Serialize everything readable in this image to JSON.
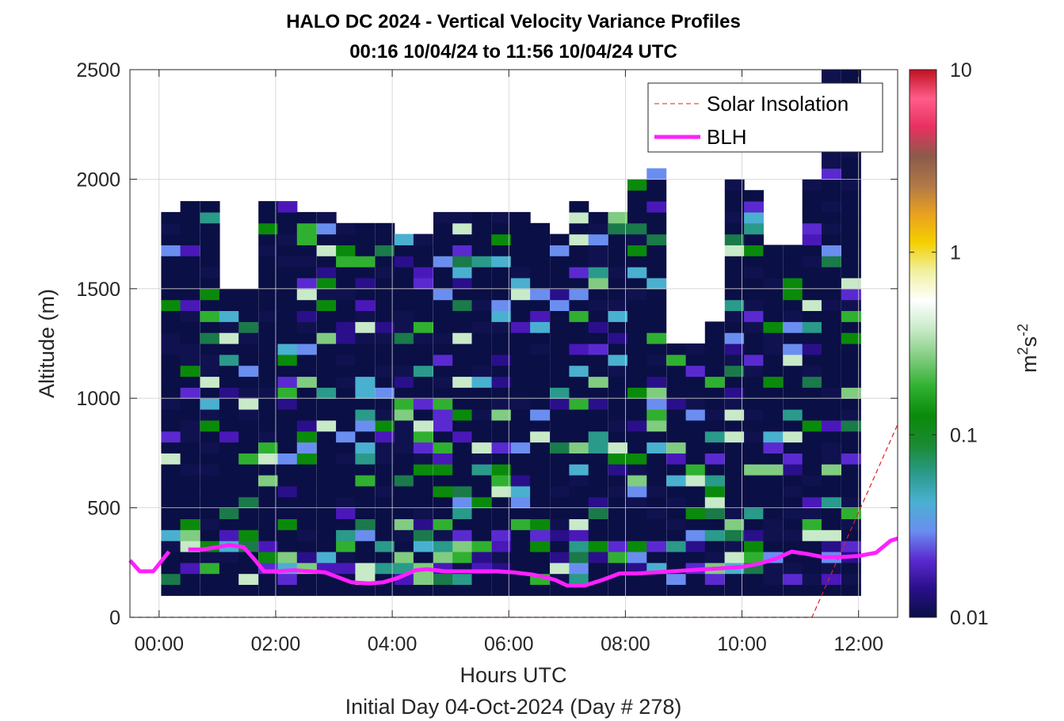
{
  "chart_data": {
    "type": "heatmap",
    "title": "HALO DC 2024 - Vertical Velocity Variance Profiles",
    "subtitle": "00:16 10/04/24 to 11:56 10/04/24  UTC",
    "xlabel": "Hours UTC",
    "xlabel2": "Initial Day 04-Oct-2024 (Day # 278)",
    "ylabel": "Altitude (m)",
    "xlim": [
      -0.5,
      12.67
    ],
    "ylim": [
      0,
      2500
    ],
    "x_ticks": [
      0,
      2,
      4,
      6,
      8,
      10,
      12
    ],
    "x_tick_labels": [
      "00:00",
      "02:00",
      "04:00",
      "06:00",
      "08:00",
      "10:00",
      "12:00"
    ],
    "y_ticks": [
      0,
      500,
      1000,
      1500,
      2000,
      2500
    ],
    "y_tick_labels": [
      "0",
      "500",
      "1000",
      "1500",
      "2000",
      "2500"
    ],
    "grid": true,
    "colorbar": {
      "label_base": "m",
      "label_sup1": "2",
      "label_mid": "s",
      "label_sup2": "-2",
      "scale": "log",
      "range": [
        0.01,
        10
      ],
      "ticks": [
        0.01,
        0.1,
        1,
        10
      ],
      "tick_labels": [
        "0.01",
        "0.1",
        "1",
        "10"
      ],
      "colors": [
        "#0a0f45",
        "#2a0f8a",
        "#5a2ad0",
        "#6a8ef0",
        "#4ab0d0",
        "#2a9a8a",
        "#1a8a30",
        "#0a8a0a",
        "#30b030",
        "#80cc80",
        "#c8eac8",
        "#ffffff",
        "#f0f0a0",
        "#f4d000",
        "#e8a020",
        "#b07848",
        "#8c5a4a",
        "#e83060",
        "#ff5c8a",
        "#c01020"
      ]
    },
    "legend": {
      "placement": "top-right",
      "entries": [
        {
          "label": "Solar Insolation",
          "color": "#e02020",
          "style": "dashed"
        },
        {
          "label": "BLH",
          "color": "#ff20ff",
          "style": "solid"
        }
      ]
    },
    "series": [
      {
        "name": "BLH",
        "color": "#ff20ff",
        "x": [
          -0.5,
          -0.33,
          -0.1,
          0.17,
          0.35,
          0.5,
          0.75,
          1.0,
          1.2,
          1.45,
          1.65,
          1.8,
          2.0,
          2.3,
          2.6,
          2.85,
          3.05,
          3.3,
          3.6,
          3.85,
          4.1,
          4.4,
          4.6,
          4.9,
          5.2,
          5.5,
          5.8,
          6.1,
          6.4,
          6.6,
          6.8,
          7.0,
          7.3,
          7.6,
          7.9,
          8.2,
          8.5,
          8.8,
          9.1,
          9.4,
          9.7,
          10.0,
          10.3,
          10.6,
          10.85,
          11.1,
          11.4,
          11.7,
          12.0,
          12.3,
          12.55,
          12.67
        ],
        "y": [
          260,
          210,
          210,
          300,
          null,
          310,
          310,
          320,
          330,
          320,
          260,
          210,
          210,
          215,
          210,
          205,
          185,
          160,
          155,
          160,
          180,
          215,
          220,
          210,
          210,
          210,
          210,
          205,
          195,
          185,
          170,
          145,
          145,
          170,
          200,
          200,
          205,
          210,
          215,
          220,
          225,
          230,
          245,
          270,
          300,
          290,
          275,
          275,
          280,
          295,
          350,
          360
        ]
      },
      {
        "name": "Solar Insolation",
        "color": "#e02020",
        "x": [
          -0.5,
          11.2,
          12.67
        ],
        "y": [
          0,
          0,
          880
        ]
      }
    ],
    "x": [
      0.2,
      0.53,
      0.87,
      1.2,
      1.53,
      1.87,
      2.2,
      2.53,
      2.87,
      3.2,
      3.53,
      3.87,
      4.2,
      4.53,
      4.87,
      5.2,
      5.53,
      5.87,
      6.2,
      6.53,
      6.87,
      7.2,
      7.53,
      7.87,
      8.2,
      8.53,
      8.87,
      9.2,
      9.53,
      9.87,
      10.2,
      10.53,
      10.87,
      11.2,
      11.53,
      11.87
    ],
    "y": [
      125,
      175,
      225,
      275,
      325,
      375,
      425,
      475,
      525,
      575,
      625,
      675,
      725,
      775,
      825,
      875,
      925,
      975,
      1025,
      1075,
      1125,
      1175,
      1225,
      1275,
      1325,
      1375,
      1425,
      1475,
      1525,
      1575,
      1625,
      1675,
      1725,
      1775,
      1825,
      1875,
      1925,
      1975,
      2025,
      2075,
      2125,
      2175,
      2225,
      2275,
      2325,
      2375,
      2425,
      2475
    ],
    "column_top_altitudes": [
      1830,
      1870,
      1870,
      1500,
      1500,
      1870,
      1870,
      1830,
      1830,
      1790,
      1790,
      1790,
      1750,
      1750,
      1830,
      1830,
      1830,
      1830,
      1830,
      1790,
      1710,
      1870,
      1830,
      1830,
      2000,
      2040,
      1240,
      1240,
      1340,
      1960,
      1920,
      1670,
      1670,
      1960,
      2470,
      2470
    ]
  }
}
